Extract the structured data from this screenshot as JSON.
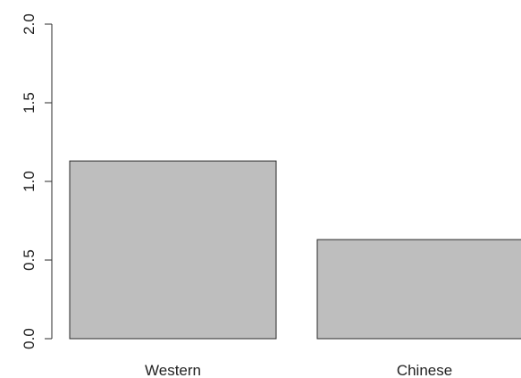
{
  "chart_data": {
    "type": "bar",
    "categories": [
      "Western",
      "Chinese"
    ],
    "values": [
      1.13,
      0.63
    ],
    "title": "",
    "xlabel": "",
    "ylabel": "",
    "ylim": [
      0,
      2.0
    ],
    "y_ticks": [
      "0.0",
      "0.5",
      "1.0",
      "1.5",
      "2.0"
    ],
    "y_tick_values": [
      0,
      0.5,
      1.0,
      1.5,
      2.0
    ],
    "grid": false,
    "bar_color": "#bebebe",
    "border_color": "#2a2a2a"
  }
}
